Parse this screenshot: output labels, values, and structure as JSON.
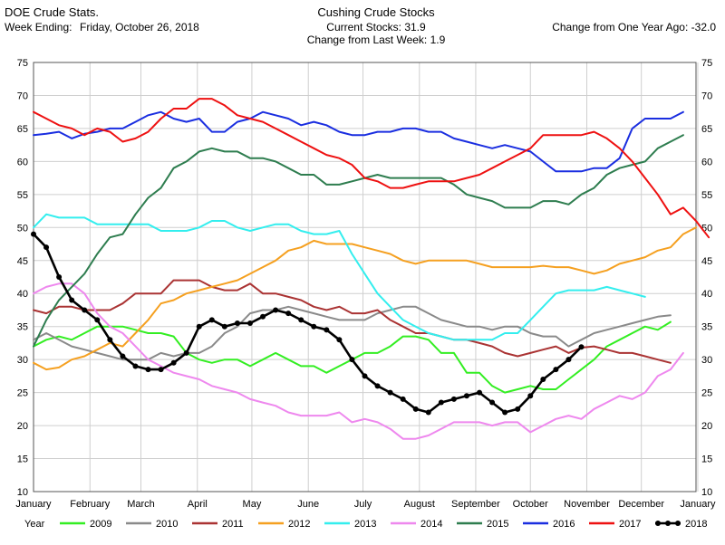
{
  "header": {
    "app_title": "DOE Crude Stats.",
    "week_ending_label": "Week Ending:",
    "week_ending_date": "Friday, October 26, 2018",
    "chart_title": "Cushing Crude Stocks",
    "current_stocks": "Current Stocks:  31.9",
    "change_last_week": "Change from Last Week:   1.9",
    "change_year_ago": "Change from One Year Ago: -32.0"
  },
  "legend": {
    "title": "Year"
  },
  "chart_data": {
    "type": "line",
    "title": "Cushing Crude Stocks",
    "ylim": [
      10,
      75
    ],
    "y_ticks": [
      "10",
      "15",
      "20",
      "25",
      "30",
      "35",
      "40",
      "45",
      "50",
      "55",
      "60",
      "65",
      "70",
      "75"
    ],
    "y_tick_values": [
      10,
      15,
      20,
      25,
      30,
      35,
      40,
      45,
      50,
      55,
      60,
      65,
      70,
      75
    ],
    "x_unit": "week of year",
    "xlim": [
      0,
      52
    ],
    "x_ticks": [
      "January",
      "February",
      "March",
      "April",
      "May",
      "June",
      "July",
      "August",
      "September",
      "October",
      "November",
      "December",
      "January"
    ],
    "x_tick_values": [
      0,
      4.43,
      8.43,
      12.86,
      17.14,
      21.57,
      25.86,
      30.29,
      34.71,
      39,
      43.43,
      47.71,
      52.14
    ],
    "grid": true,
    "legend_position": "bottom",
    "series": [
      {
        "name": "2009",
        "color": "#33ee22",
        "markers": false,
        "values": [
          32,
          33,
          33.5,
          33,
          34,
          35,
          35,
          35,
          34.5,
          34,
          34,
          33.5,
          31,
          30,
          29.5,
          30,
          30,
          29,
          30,
          31,
          30,
          29,
          29,
          28,
          29,
          30,
          31,
          31,
          32,
          33.5,
          33.5,
          33,
          31,
          31,
          28,
          28,
          26,
          25,
          25.5,
          26,
          25.5,
          25.5,
          27,
          28.5,
          30,
          32,
          33,
          34,
          35,
          34.5,
          35.7
        ]
      },
      {
        "name": "2010",
        "color": "#8a8a8a",
        "markers": false,
        "values": [
          33,
          34,
          33,
          32,
          31.5,
          31,
          30.5,
          30,
          30,
          30,
          31,
          30.5,
          31,
          31,
          32,
          34,
          35,
          37,
          37.5,
          37.5,
          38,
          37.5,
          37,
          36.5,
          36,
          36,
          36,
          37,
          37.5,
          38,
          38,
          37,
          36,
          35.5,
          35,
          35,
          34.5,
          35,
          35,
          34,
          33.5,
          33.5,
          32,
          33,
          34,
          34.5,
          35,
          35.5,
          36,
          36.5,
          36.7
        ]
      },
      {
        "name": "2011",
        "color": "#aa3333",
        "markers": false,
        "values": [
          37.5,
          37,
          38,
          38,
          37.5,
          37.5,
          37.5,
          38.5,
          40,
          40,
          40,
          42,
          42,
          42,
          41,
          40.5,
          40.5,
          41.5,
          40,
          40,
          39.5,
          39,
          38,
          37.5,
          38,
          37,
          37,
          37.5,
          36,
          35,
          34,
          34,
          33.5,
          33,
          33,
          32.5,
          32,
          31,
          30.5,
          31,
          31.5,
          32,
          31,
          31.8,
          32,
          31.5,
          31,
          31,
          30.5,
          30,
          29.5
        ]
      },
      {
        "name": "2012",
        "color": "#f5a020",
        "markers": false,
        "values": [
          29.5,
          28.5,
          28.8,
          30,
          30.5,
          31.5,
          32.5,
          32,
          34,
          36,
          38.5,
          39,
          40,
          40.5,
          41,
          41.5,
          42,
          43,
          44,
          45,
          46.5,
          47,
          48,
          47.5,
          47.5,
          47.5,
          47,
          46.5,
          46,
          45,
          44.5,
          45,
          45,
          45,
          45,
          44.5,
          44,
          44,
          44,
          44,
          44.2,
          44,
          44,
          43.5,
          43,
          43.5,
          44.5,
          45,
          45.5,
          46.5,
          47,
          49,
          50
        ]
      },
      {
        "name": "2013",
        "color": "#33eeee",
        "markers": false,
        "values": [
          50,
          52,
          51.5,
          51.5,
          51.5,
          50.5,
          50.5,
          50.5,
          50.5,
          50.5,
          49.5,
          49.5,
          49.5,
          50,
          51,
          51,
          50,
          49.5,
          50,
          50.5,
          50.5,
          49.5,
          49,
          49,
          49.5,
          46,
          43,
          40,
          38,
          36,
          35,
          34,
          33.5,
          33,
          33,
          33,
          33,
          34,
          34,
          36,
          38,
          40,
          40.5,
          40.5,
          40.5,
          41,
          40.5,
          40,
          39.5
        ]
      },
      {
        "name": "2014",
        "color": "#ee88ee",
        "markers": false,
        "values": [
          40,
          41,
          41.5,
          41.5,
          40,
          37,
          35,
          34,
          32,
          30,
          29,
          28,
          27.5,
          27,
          26,
          25.5,
          25,
          24,
          23.5,
          23,
          22,
          21.5,
          21.5,
          21.5,
          22,
          20.5,
          21,
          20.5,
          19.5,
          18,
          18,
          18.5,
          19.5,
          20.5,
          20.5,
          20.5,
          20,
          20.5,
          20.5,
          19,
          20,
          21,
          21.5,
          21,
          22.5,
          23.5,
          24.5,
          24,
          25,
          27.5,
          28.5,
          31
        ]
      },
      {
        "name": "2015",
        "color": "#2e7d4f",
        "markers": false,
        "values": [
          32,
          36,
          39,
          41,
          43,
          46,
          48.5,
          49,
          52,
          54.5,
          56,
          59,
          60,
          61.5,
          62,
          61.5,
          61.5,
          60.5,
          60.5,
          60,
          59,
          58,
          58,
          56.5,
          56.5,
          57,
          57.5,
          58,
          57.5,
          57.5,
          57.5,
          57.5,
          57.5,
          56.5,
          55,
          54.5,
          54,
          53,
          53,
          53,
          54,
          54,
          53.5,
          55,
          56,
          58,
          59,
          59.5,
          60,
          62,
          63,
          64
        ]
      },
      {
        "name": "2016",
        "color": "#1a2ee0",
        "markers": false,
        "values": [
          64,
          64.2,
          64.5,
          63.5,
          64.2,
          64.5,
          65,
          65,
          66,
          67,
          67.5,
          66.5,
          66,
          66.5,
          64.5,
          64.5,
          66,
          66.5,
          67.5,
          67,
          66.5,
          65.5,
          66,
          65.5,
          64.5,
          64,
          64,
          64.5,
          64.5,
          65,
          65,
          64.5,
          64.5,
          63.5,
          63,
          62.5,
          62,
          62.5,
          62,
          61.5,
          60,
          58.5,
          58.5,
          58.5,
          59,
          59,
          60.5,
          65,
          66.5,
          66.5,
          66.5,
          67.5
        ]
      },
      {
        "name": "2017",
        "color": "#ee1111",
        "markers": false,
        "values": [
          67.5,
          66.5,
          65.5,
          65,
          64,
          65,
          64.5,
          63,
          63.5,
          64.5,
          66.5,
          68,
          68,
          69.5,
          69.5,
          68.5,
          67,
          66.5,
          66,
          65,
          64,
          63,
          62,
          61,
          60.5,
          59.5,
          57.5,
          57,
          56,
          56,
          56.5,
          57,
          57,
          57,
          57.5,
          58,
          59,
          60,
          61,
          62,
          64,
          64,
          64,
          64,
          64.5,
          63.5,
          62,
          60,
          57.5,
          55,
          52,
          53,
          51,
          48.5
        ]
      },
      {
        "name": "2018",
        "color": "#000000",
        "markers": true,
        "values": [
          49,
          47,
          42.5,
          39,
          37.5,
          36,
          33,
          30.5,
          29,
          28.5,
          28.5,
          29.5,
          31,
          35,
          36,
          35,
          35.5,
          35.5,
          36.5,
          37.5,
          37,
          36,
          35,
          34.5,
          33,
          30,
          27.5,
          26,
          25,
          24,
          22.5,
          22,
          23.5,
          24,
          24.5,
          25,
          23.5,
          22,
          22.5,
          24.5,
          27,
          28.5,
          30,
          31.9
        ]
      }
    ]
  }
}
